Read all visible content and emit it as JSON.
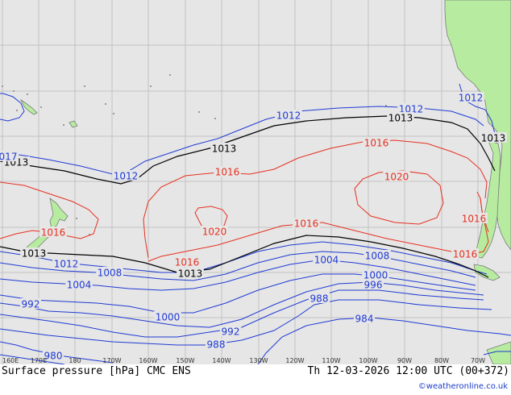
{
  "title_left": "Surface pressure [hPa] CMC ENS",
  "title_right": "Th 12-03-2026 12:00 UTC (00+372)",
  "credit": "©weatheronline.co.uk",
  "colors": {
    "ocean": "#e6e6e6",
    "land": "#b7eca0",
    "grid": "#c2c2c2",
    "low_isobar": "#1f3ad4",
    "ref_isobar": "#000000",
    "high_isobar": "#e63020",
    "coast": "#7a7a7a"
  },
  "longitude_ticks": [
    "160E",
    "170E",
    "180",
    "170W",
    "160W",
    "150W",
    "140W",
    "130W",
    "120W",
    "110W",
    "100W",
    "90W",
    "80W",
    "70W"
  ],
  "isobar_labels": [
    {
      "value": "1012",
      "color": "low"
    },
    {
      "value": "1012",
      "color": "low"
    },
    {
      "value": "1012",
      "color": "low"
    },
    {
      "value": "1012",
      "color": "low"
    },
    {
      "value": "1012",
      "color": "low"
    },
    {
      "value": "1013",
      "color": "ref"
    },
    {
      "value": "1013",
      "color": "ref"
    },
    {
      "value": "1013",
      "color": "ref"
    },
    {
      "value": "1013",
      "color": "ref"
    },
    {
      "value": "1013",
      "color": "ref"
    },
    {
      "value": "1013",
      "color": "ref"
    },
    {
      "value": "1016",
      "color": "high"
    },
    {
      "value": "1016",
      "color": "high"
    },
    {
      "value": "1016",
      "color": "high"
    },
    {
      "value": "1016",
      "color": "high"
    },
    {
      "value": "1016",
      "color": "high"
    },
    {
      "value": "1016",
      "color": "high"
    },
    {
      "value": "1016",
      "color": "high"
    },
    {
      "value": "1020",
      "color": "high"
    },
    {
      "value": "1020",
      "color": "high"
    },
    {
      "value": "1008",
      "color": "low"
    },
    {
      "value": "1008",
      "color": "low"
    },
    {
      "value": "1004",
      "color": "low"
    },
    {
      "value": "1004",
      "color": "low"
    },
    {
      "value": "1000",
      "color": "low"
    },
    {
      "value": "1000",
      "color": "low"
    },
    {
      "value": "996",
      "color": "low"
    },
    {
      "value": "992",
      "color": "low"
    },
    {
      "value": "992",
      "color": "low"
    },
    {
      "value": "988",
      "color": "low"
    },
    {
      "value": "988",
      "color": "low"
    },
    {
      "value": "984",
      "color": "low"
    },
    {
      "value": "980",
      "color": "low"
    },
    {
      "value": "017",
      "color": "low"
    }
  ]
}
